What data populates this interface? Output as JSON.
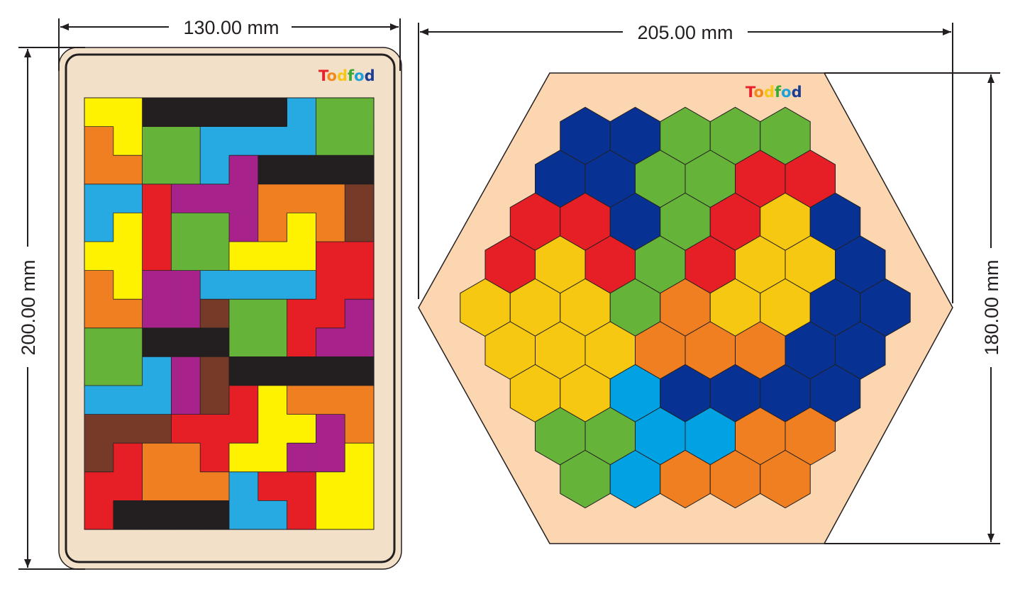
{
  "dimensions": {
    "rect_width": "130.00 mm",
    "rect_height": "200.00 mm",
    "hex_width": "205.00 mm",
    "hex_height": "180.00 mm"
  },
  "brand": {
    "letters": [
      "T",
      "o",
      "d",
      "f",
      "o",
      "d"
    ],
    "letter_colors": [
      "#e8212a",
      "#f08a1c",
      "#f5c518",
      "#3aa935",
      "#1da1db",
      "#1a3d96"
    ]
  },
  "colors": {
    "Y": "#fff200",
    "K": "#231f20",
    "C": "#27a9e1",
    "G": "#66b33a",
    "O": "#f07f22",
    "P": "#a7238b",
    "R": "#e61e26",
    "B": "#763a28",
    "hexB": "#073294",
    "hexG": "#66b33a",
    "hexR": "#e61e26",
    "hexY": "#f7c811",
    "hexO": "#f07f22",
    "hexC": "#00a2e4",
    "board": "#f3e0c8",
    "hexBoard": "#fcd6b0"
  },
  "rect_puzzle": {
    "cols": 10,
    "rows": 15,
    "grid": [
      "YYKKKKKCGG",
      "OYGGCCCCGG",
      "OOGGCPKKKK",
      "CCRPPPOOOB",
      "CYRGGPOYOB",
      "YYRGGYYYRR",
      "OYPPCCCCRR",
      "OOPPBGGRRP",
      "GGKKKGGRPP",
      "GGCPBKKKKK",
      "CCCPBRYOOO",
      "BBBRRRYYPO",
      "BROORYYPPY",
      "RROOOCRRYY",
      "RKKKKCCRYY"
    ]
  },
  "hex_puzzle": {
    "rows": [
      "BBGGG",
      "BBGGRR",
      "RRBGRYB",
      "RYRGRYYB",
      "YYYGOYYBB",
      "YYYOOOBB",
      "YYCBBBB",
      "GGCCOO",
      "GCOOO"
    ]
  }
}
